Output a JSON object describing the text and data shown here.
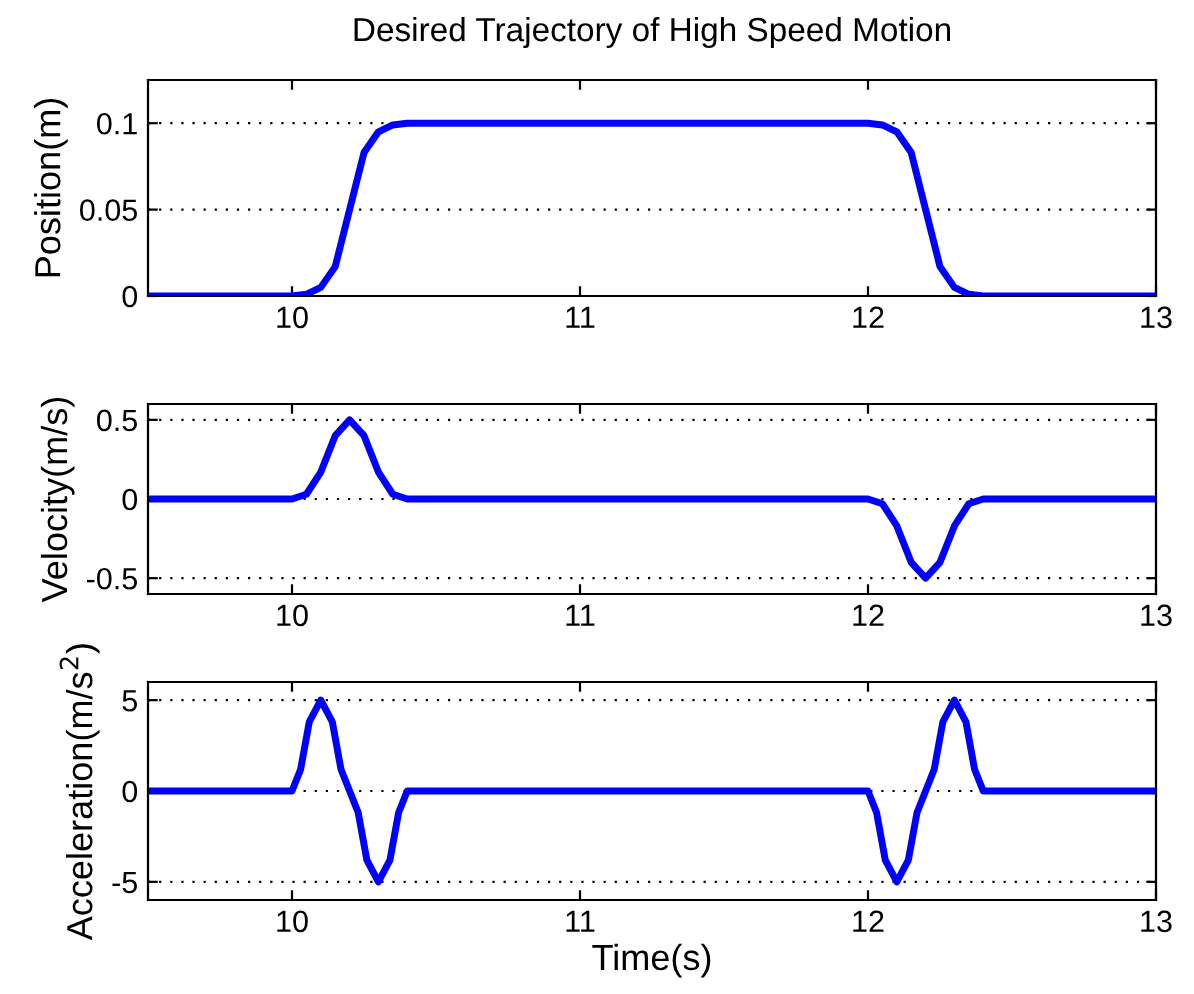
{
  "chart_data": [
    {
      "type": "line",
      "title": "Desired Trajectory of High Speed Motion",
      "ylabel": "Position(m)",
      "xlim": [
        9.5,
        13
      ],
      "xticks": [
        10,
        11,
        12,
        13
      ],
      "ylim": [
        0,
        0.125
      ],
      "yticks": [
        0,
        0.05,
        0.1
      ],
      "grid": "y",
      "line_style": "solid",
      "marker": "none",
      "series": [
        {
          "color": "#0000ff",
          "x": [
            9.5,
            10.0,
            10.05,
            10.1,
            10.15,
            10.2,
            10.25,
            10.3,
            10.35,
            10.4,
            12.0,
            12.05,
            12.1,
            12.15,
            12.2,
            12.25,
            12.3,
            12.35,
            12.4,
            13.0
          ],
          "values": [
            0,
            0,
            0.001,
            0.005,
            0.017,
            0.05,
            0.083,
            0.095,
            0.099,
            0.1,
            0.1,
            0.099,
            0.095,
            0.083,
            0.05,
            0.017,
            0.005,
            0.001,
            0,
            0
          ]
        }
      ]
    },
    {
      "type": "line",
      "ylabel": "Velocity(m/s)",
      "xlim": [
        9.5,
        13
      ],
      "xticks": [
        10,
        11,
        12,
        13
      ],
      "ylim": [
        -0.6,
        0.6
      ],
      "yticks": [
        -0.5,
        0,
        0.5
      ],
      "grid": "y",
      "line_style": "solid",
      "marker": "none",
      "series": [
        {
          "color": "#0000ff",
          "x": [
            9.5,
            10.0,
            10.05,
            10.1,
            10.15,
            10.2,
            10.25,
            10.3,
            10.35,
            10.4,
            12.0,
            12.05,
            12.1,
            12.15,
            12.2,
            12.25,
            12.3,
            12.35,
            12.4,
            13.0
          ],
          "values": [
            0,
            0,
            0.03,
            0.17,
            0.4,
            0.5,
            0.4,
            0.17,
            0.03,
            0,
            0,
            -0.03,
            -0.17,
            -0.4,
            -0.5,
            -0.4,
            -0.17,
            -0.03,
            0,
            0
          ]
        }
      ]
    },
    {
      "type": "line",
      "ylabel": "Acceleration(m/s$^{2}$)",
      "xlabel": "Time(s)",
      "xlim": [
        9.5,
        13
      ],
      "xticks": [
        10,
        11,
        12,
        13
      ],
      "ylim": [
        -6,
        6
      ],
      "yticks": [
        -5,
        0,
        5
      ],
      "grid": "y",
      "line_style": "solid",
      "marker": "none",
      "series": [
        {
          "color": "#0000ff",
          "x": [
            9.5,
            10.0,
            10.03,
            10.06,
            10.1,
            10.14,
            10.17,
            10.2,
            10.23,
            10.26,
            10.3,
            10.34,
            10.37,
            10.4,
            12.0,
            12.03,
            12.06,
            12.1,
            12.14,
            12.17,
            12.2,
            12.23,
            12.26,
            12.3,
            12.34,
            12.37,
            12.4,
            13.0
          ],
          "values": [
            0,
            0,
            1.2,
            3.8,
            5,
            3.8,
            1.2,
            0,
            -1.2,
            -3.8,
            -5,
            -3.8,
            -1.2,
            0,
            0,
            -1.2,
            -3.8,
            -5,
            -3.8,
            -1.2,
            0,
            1.2,
            3.8,
            5,
            3.8,
            1.2,
            0,
            0
          ]
        }
      ]
    }
  ]
}
